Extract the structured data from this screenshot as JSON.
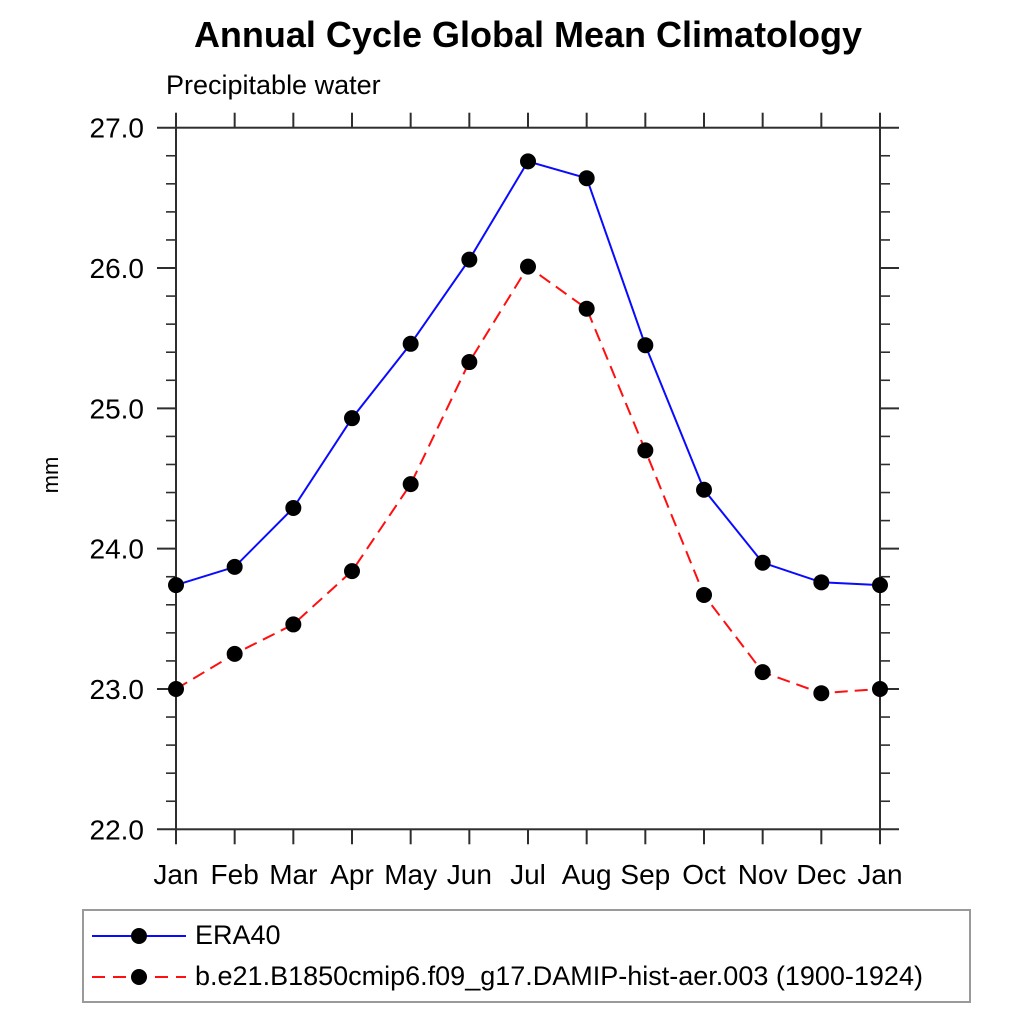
{
  "page": {
    "background": "#ffffff"
  },
  "chart": {
    "title": "Annual Cycle Global Mean Climatology",
    "subtitle": "Precipitable water",
    "ylabel": "mm"
  },
  "chart_data": {
    "type": "line",
    "title": "Annual Cycle Global Mean Climatology",
    "subtitle": "Precipitable water",
    "xlabel": "",
    "ylabel": "mm",
    "categories": [
      "Jan",
      "Feb",
      "Mar",
      "Apr",
      "May",
      "Jun",
      "Jul",
      "Aug",
      "Sep",
      "Oct",
      "Nov",
      "Dec",
      "Jan"
    ],
    "ylim": [
      22.0,
      27.0
    ],
    "y_major_step": 1.0,
    "y_minor_step": 0.2,
    "y_tick_labels": [
      "22.0",
      "23.0",
      "24.0",
      "25.0",
      "26.0",
      "27.0"
    ],
    "grid": false,
    "legend_position": "bottom-left-box",
    "axis_color": "#2e2e2e",
    "series": [
      {
        "name": "ERA40",
        "color": "#0a0aff",
        "line_style": "solid",
        "marker": "circle",
        "marker_color": "#000000",
        "values": [
          23.74,
          23.87,
          24.29,
          24.93,
          25.46,
          26.06,
          26.76,
          26.64,
          25.45,
          24.42,
          23.9,
          23.76,
          23.74
        ]
      },
      {
        "name": "b.e21.B1850cmip6.f09_g17.DAMIP-hist-aer.003 (1900-1924)",
        "color": "#ff0f0f",
        "line_style": "dashed",
        "marker": "circle",
        "marker_color": "#000000",
        "values": [
          23.0,
          23.25,
          23.46,
          23.84,
          24.46,
          25.33,
          26.01,
          25.71,
          24.7,
          23.67,
          23.12,
          22.97,
          23.0
        ]
      }
    ]
  }
}
